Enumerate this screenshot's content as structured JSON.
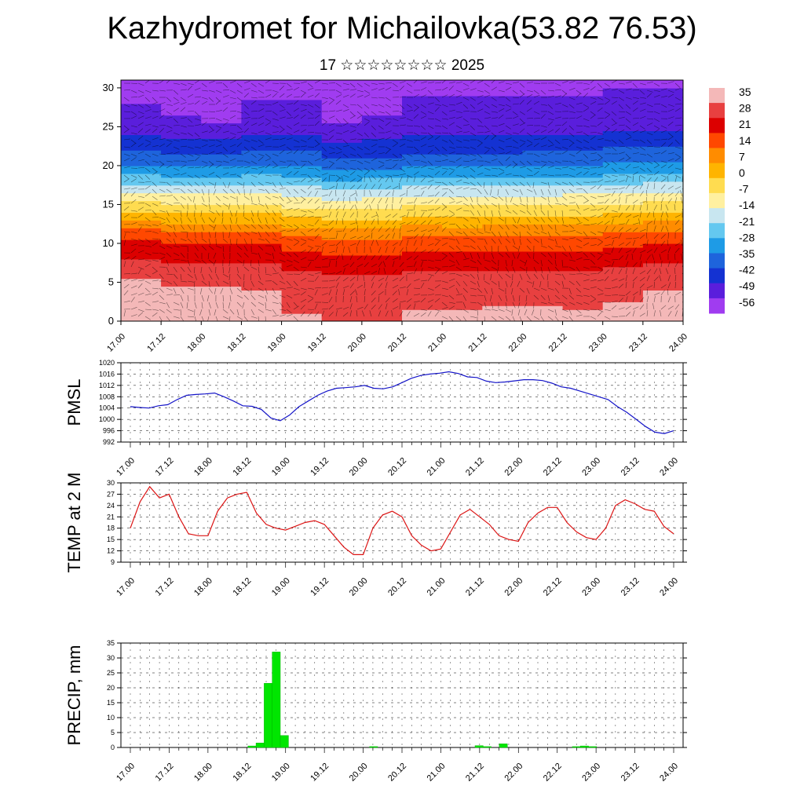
{
  "page": {
    "title": "Kazhydromet for Michailovka(53.82 76.53)",
    "subtitle": "17 ☆☆☆☆☆☆☆☆ 2025"
  },
  "time_ticks": [
    "17.00",
    "17.12",
    "18.00",
    "18.12",
    "19.00",
    "19.12",
    "20.00",
    "20.12",
    "21.00",
    "21.12",
    "22.00",
    "22.12",
    "23.00",
    "23.12",
    "24.00"
  ],
  "chart_data": [
    {
      "type": "heatmap",
      "description": "Vertical cross-section of temperature with wind barbs",
      "y_ticks": [
        "0",
        "5",
        "10",
        "15",
        "20",
        "25",
        "30"
      ],
      "ylim": [
        0,
        31
      ],
      "colorbar": {
        "labels": [
          "35",
          "28",
          "21",
          "14",
          "7",
          "0",
          "-7",
          "-14",
          "-21",
          "-28",
          "-35",
          "-42",
          "-49",
          "-56"
        ],
        "colors": [
          "#f4b8b8",
          "#e84040",
          "#dc0000",
          "#ff4800",
          "#ff8c00",
          "#ffb400",
          "#ffdc50",
          "#fff0a0",
          "#c8e6f0",
          "#64c8f0",
          "#1e9be6",
          "#1e64dc",
          "#1432d2",
          "#5a1edc",
          "#a03cf0"
        ]
      },
      "temperature_levels": [
        {
          "level": 0,
          "values": [
            34,
            33,
            31,
            33,
            30,
            29,
            28,
            29,
            30,
            29,
            31,
            29,
            30,
            31,
            32
          ]
        },
        {
          "level": 5,
          "values": [
            30,
            29,
            27,
            29,
            26,
            24,
            24,
            25,
            26,
            25,
            27,
            25,
            26,
            27,
            28
          ]
        },
        {
          "level": 10,
          "values": [
            18,
            17,
            15,
            17,
            14,
            12,
            11,
            13,
            14,
            12,
            14,
            13,
            14,
            15,
            16
          ]
        },
        {
          "level": 15,
          "values": [
            -8,
            -9,
            -11,
            -9,
            -12,
            -13,
            -14,
            -12,
            -11,
            -12,
            -10,
            -11,
            -10,
            -9,
            -8
          ]
        },
        {
          "level": 20,
          "values": [
            -35,
            -36,
            -38,
            -36,
            -34,
            -38,
            -40,
            -37,
            -36,
            -38,
            -36,
            -37,
            -35,
            -34,
            -33
          ]
        },
        {
          "level": 25,
          "values": [
            -52,
            -52,
            -54,
            -53,
            -51,
            -53,
            -54,
            -52,
            -51,
            -52,
            -50,
            -52,
            -51,
            -50,
            -50
          ]
        },
        {
          "level": 30,
          "values": [
            -55,
            -55,
            -56,
            -55,
            -54,
            -55,
            -56,
            -55,
            -54,
            -55,
            -54,
            -55,
            -54,
            -54,
            -54
          ]
        }
      ]
    },
    {
      "type": "line",
      "ylabel": "PMSL",
      "ylim": [
        992,
        1020
      ],
      "y_ticks": [
        992,
        996,
        1000,
        1004,
        1008,
        1012,
        1016,
        1020
      ],
      "color": "#1414c8",
      "values": [
        1004.5,
        1004.2,
        1004,
        1004.8,
        1005.2,
        1007,
        1008.5,
        1008.8,
        1009,
        1009.3,
        1008,
        1006.5,
        1004.8,
        1004.6,
        1003.5,
        1000.5,
        999.5,
        1001.5,
        1004.5,
        1006.5,
        1008.5,
        1010,
        1011,
        1011.2,
        1011.5,
        1012,
        1011,
        1010.8,
        1011.5,
        1013,
        1014.5,
        1015.5,
        1016,
        1016.3,
        1016.8,
        1016.2,
        1015,
        1014.8,
        1013.5,
        1013,
        1013.2,
        1013.6,
        1014,
        1014,
        1013.7,
        1012.8,
        1011.5,
        1011,
        1010,
        1009,
        1008,
        1007,
        1004.5,
        1002.5,
        1000,
        997.5,
        995.5,
        995,
        996
      ]
    },
    {
      "type": "line",
      "ylabel": "TEMP at 2 M",
      "ylim": [
        9,
        30
      ],
      "y_ticks": [
        9,
        12,
        15,
        18,
        21,
        24,
        27,
        30
      ],
      "color": "#dc1414",
      "values": [
        18,
        25,
        29,
        26,
        27,
        21,
        16.5,
        16,
        16,
        22.5,
        26,
        27,
        27.5,
        22,
        19,
        18,
        17.5,
        18.5,
        19.5,
        20,
        19,
        16,
        13,
        11,
        11,
        18,
        21.5,
        22.5,
        21,
        16,
        13.5,
        12,
        12.5,
        17,
        21.5,
        23,
        21,
        19,
        16,
        15,
        14.5,
        19.5,
        22,
        23.5,
        23.5,
        19.5,
        17,
        15.5,
        15,
        18,
        24,
        25.5,
        24.5,
        23,
        22.5,
        18.5,
        16.5
      ]
    },
    {
      "type": "bar",
      "ylabel": "PRECIP, mm",
      "ylim": [
        0,
        35
      ],
      "y_ticks": [
        0,
        5,
        10,
        15,
        20,
        25,
        30,
        35
      ],
      "color": "#00e600",
      "values": [
        0,
        0,
        0,
        0,
        0,
        0,
        0,
        0,
        0,
        0,
        0,
        0,
        0,
        0,
        0,
        0.5,
        1.5,
        21.5,
        32,
        4,
        0,
        0,
        0,
        0,
        0,
        0,
        0,
        0,
        0,
        0,
        0.3,
        0,
        0,
        0,
        0,
        0,
        0,
        0,
        0,
        0,
        0,
        0,
        0,
        0.6,
        0.3,
        0,
        1.2,
        0,
        0,
        0,
        0,
        0,
        0,
        0,
        0,
        0.3,
        0.5,
        0.3,
        0,
        0,
        0,
        0,
        0,
        0,
        0,
        0,
        0,
        0
      ]
    }
  ]
}
